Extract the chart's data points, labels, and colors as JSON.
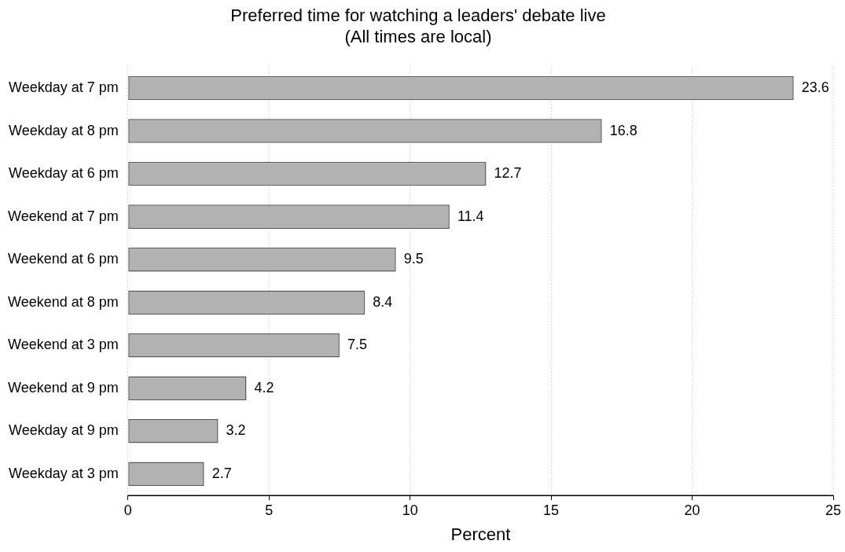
{
  "chart_data": {
    "type": "bar",
    "orientation": "horizontal",
    "title": "Preferred time for watching a leaders' debate live",
    "subtitle": "(All times are local)",
    "xlabel": "Percent",
    "categories": [
      "Weekday at 7 pm",
      "Weekday at 8 pm",
      "Weekday at 6 pm",
      "Weekend at 7 pm",
      "Weekend at 6 pm",
      "Weekend at 8 pm",
      "Weekend at 3 pm",
      "Weekend at 9 pm",
      "Weekday at 9 pm",
      "Weekday at 3 pm"
    ],
    "values": [
      23.6,
      16.8,
      12.7,
      11.4,
      9.5,
      8.4,
      7.5,
      4.2,
      3.2,
      2.7
    ],
    "color": "#b2b2b2",
    "xlim": [
      0,
      25
    ],
    "xticks": [
      0,
      5,
      10,
      15,
      20,
      25
    ],
    "grid": "x",
    "data_labels": true,
    "legend": false
  }
}
